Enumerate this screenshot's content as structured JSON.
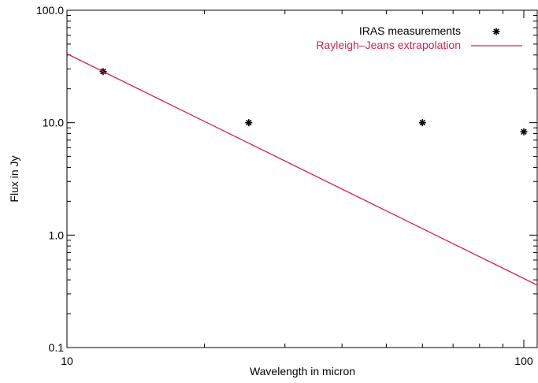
{
  "chart_data": {
    "type": "scatter",
    "title": "",
    "xlabel": "Wavelength in micron",
    "ylabel": "Flux in Jy",
    "xscale": "log",
    "yscale": "log",
    "xlim": [
      10,
      110
    ],
    "ylim": [
      0.1,
      100
    ],
    "x_ticks": [
      {
        "value": 10,
        "label": "10"
      },
      {
        "value": 100,
        "label": "100"
      }
    ],
    "y_ticks": [
      {
        "value": 0.1,
        "label": "0.1"
      },
      {
        "value": 1,
        "label": "1.0"
      },
      {
        "value": 10,
        "label": "10.0"
      },
      {
        "value": 100,
        "label": "100.0"
      }
    ],
    "grid": false,
    "legend": "top-right",
    "series": [
      {
        "name": "IRAS measurements",
        "type": "scatter",
        "marker": "asterisk",
        "color": "#000000",
        "points": [
          {
            "x": 12,
            "y": 28.5
          },
          {
            "x": 25,
            "y": 10.0
          },
          {
            "x": 60,
            "y": 10.0
          },
          {
            "x": 100,
            "y": 8.3
          }
        ]
      },
      {
        "name": "Rayleigh–Jeans extrapolation",
        "type": "line",
        "color": "#d6204f",
        "points": [
          {
            "x": 10,
            "y": 41.0
          },
          {
            "x": 110,
            "y": 0.34
          }
        ]
      }
    ]
  }
}
